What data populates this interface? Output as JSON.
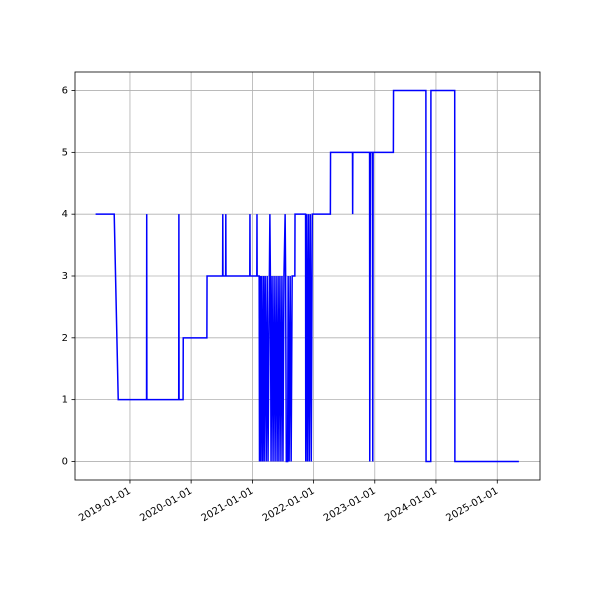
{
  "chart_data": {
    "type": "line",
    "color": "#0000ff",
    "grid": true,
    "xlim": [
      "2018-02-07",
      "2025-09-13"
    ],
    "ylim": [
      -0.3,
      6.3
    ],
    "xticks": [
      "2019-01-01",
      "2020-01-01",
      "2021-01-01",
      "2022-01-01",
      "2023-01-01",
      "2024-01-01",
      "2025-01-01"
    ],
    "yticks": [
      0,
      1,
      2,
      3,
      4,
      5,
      6
    ],
    "x": [
      "2018-06-10",
      "2018-09-29",
      "2018-10-23",
      "2019-04-10",
      "2019-04-11",
      "2019-04-12",
      "2019-10-19",
      "2019-10-20",
      "2019-10-21",
      "2019-11-14",
      "2019-11-15",
      "2020-04-04",
      "2020-04-05",
      "2020-07-07",
      "2020-07-08",
      "2020-07-09",
      "2020-07-25",
      "2020-07-26",
      "2020-07-27",
      "2020-12-16",
      "2020-12-17",
      "2020-12-18",
      "2021-01-27",
      "2021-01-28",
      "2021-01-29",
      "2021-02-10",
      "2021-02-12",
      "2021-02-16",
      "2021-02-20",
      "2021-02-25",
      "2021-03-02",
      "2021-03-08",
      "2021-03-12",
      "2021-03-18",
      "2021-03-24",
      "2021-03-30",
      "2021-04-04",
      "2021-04-12",
      "2021-04-15",
      "2021-04-18",
      "2021-04-22",
      "2021-04-28",
      "2021-05-04",
      "2021-05-10",
      "2021-05-16",
      "2021-05-22",
      "2021-05-28",
      "2021-06-03",
      "2021-06-08",
      "2021-06-14",
      "2021-06-20",
      "2021-06-26",
      "2021-07-02",
      "2021-07-08",
      "2021-07-15",
      "2021-07-18",
      "2021-07-22",
      "2021-07-30",
      "2021-08-02",
      "2021-08-08",
      "2021-08-14",
      "2021-08-20",
      "2021-08-26",
      "2021-09-11",
      "2021-09-12",
      "2021-11-14",
      "2021-11-15",
      "2021-11-20",
      "2021-11-25",
      "2021-12-01",
      "2021-12-06",
      "2021-12-12",
      "2021-12-18",
      "2021-12-24",
      "2022-04-11",
      "2022-04-12",
      "2022-08-21",
      "2022-08-22",
      "2022-08-23",
      "2022-12-01",
      "2022-12-02",
      "2022-12-06",
      "2022-12-18",
      "2022-12-20",
      "2022-12-22",
      "2023-04-22",
      "2023-04-23",
      "2023-11-02",
      "2023-11-03",
      "2023-12-01",
      "2023-12-02",
      "2024-04-22",
      "2024-04-23",
      "2025-05-10"
    ],
    "values": [
      4,
      4,
      1,
      1,
      4,
      1,
      1,
      4,
      1,
      1,
      2,
      2,
      3,
      3,
      4,
      3,
      3,
      4,
      3,
      3,
      4,
      3,
      3,
      4,
      3,
      3,
      0,
      3,
      0,
      3,
      0,
      3,
      0,
      3,
      0,
      3,
      0,
      3,
      4,
      3,
      0,
      3,
      0,
      3,
      0,
      3,
      0,
      3,
      0,
      3,
      0,
      3,
      0,
      3,
      4,
      3,
      0,
      0,
      3,
      0,
      3,
      0,
      3,
      3,
      4,
      4,
      0,
      4,
      0,
      4,
      0,
      4,
      0,
      4,
      4,
      5,
      5,
      4,
      5,
      5,
      0,
      5,
      5,
      0,
      5,
      5,
      6,
      6,
      0,
      0,
      6,
      6,
      0,
      0
    ]
  }
}
